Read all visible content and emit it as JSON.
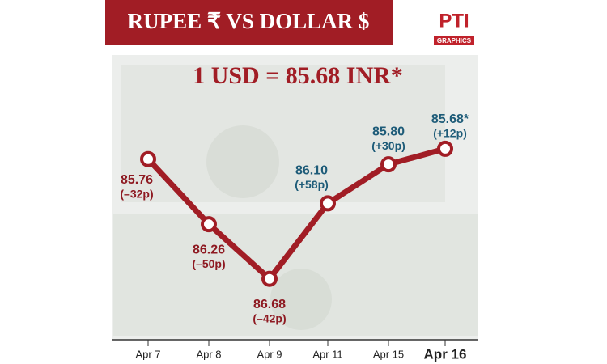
{
  "chart_data": {
    "type": "line",
    "title": "RUPEE ₹  VS  DOLLAR $",
    "subtitle": "1 USD = 85.68 INR*",
    "logo": "PTI",
    "logo_caption": "GRAPHICS",
    "categories": [
      "Apr 7",
      "Apr 8",
      "Apr 9",
      "Apr 11",
      "Apr 15",
      "Apr 16"
    ],
    "values": [
      85.76,
      86.26,
      86.68,
      86.1,
      85.8,
      85.68
    ],
    "value_labels": [
      "85.76",
      "86.26",
      "86.68",
      "86.10",
      "85.80",
      "85.68*"
    ],
    "changes": [
      "(–32p)",
      "(–50p)",
      "(–42p)",
      "(+58p)",
      "(+30p)",
      "(+12p)"
    ],
    "color": "#a11d25",
    "ylim": [
      86.8,
      85.6
    ]
  }
}
